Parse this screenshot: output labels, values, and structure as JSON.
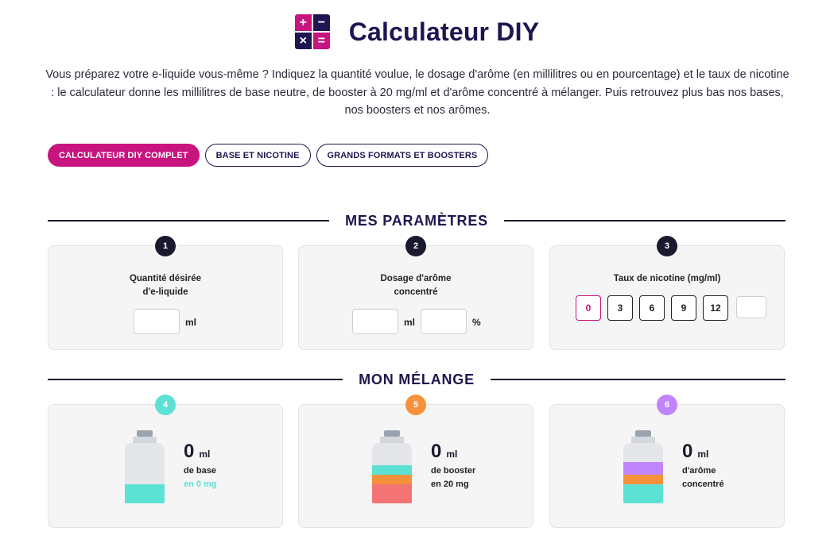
{
  "header": {
    "title": "Calculateur DIY",
    "logo_symbols": [
      "+",
      "−",
      "×",
      "="
    ]
  },
  "intro": "Vous préparez votre e-liquide vous-même ? Indiquez la quantité voulue, le dosage d'arôme (en millilitres ou en pourcentage) et le taux de nicotine : le calculateur donne les millilitres de base neutre, de booster à 20 mg/ml et d'arôme concentré à mélanger. Puis retrouvez plus bas nos bases, nos boosters et nos arômes.",
  "tabs": [
    {
      "label": "CALCULATEUR DIY COMPLET",
      "active": true
    },
    {
      "label": "BASE ET NICOTINE",
      "active": false
    },
    {
      "label": "GRANDS FORMATS ET BOOSTERS",
      "active": false
    }
  ],
  "sections": {
    "params_title": "MES PARAMÈTRES",
    "mix_title": "MON MÉLANGE"
  },
  "params": {
    "quantity": {
      "step": "1",
      "label_line1": "Quantité désirée",
      "label_line2": "d'e-liquide",
      "value": "",
      "unit": "ml"
    },
    "aroma": {
      "step": "2",
      "label_line1": "Dosage d'arôme",
      "label_line2": "concentré",
      "ml_value": "",
      "ml_unit": "ml",
      "pct_value": "",
      "pct_unit": "%"
    },
    "nicotine": {
      "step": "3",
      "label": "Taux de nicotine (mg/ml)",
      "options": [
        "0",
        "3",
        "6",
        "9",
        "12"
      ],
      "selected": "0",
      "custom_value": ""
    }
  },
  "mix": {
    "base": {
      "step": "4",
      "badge_color": "#5ce1d4",
      "amount": "0",
      "unit": "ml",
      "line1": "de base",
      "line2": "en 0 mg",
      "line2_color": "#5ce1d4",
      "levels": [
        {
          "color": "#5ce1d4",
          "fraction": 0.31
        }
      ]
    },
    "booster": {
      "step": "5",
      "badge_color": "#f4913a",
      "amount": "0",
      "unit": "ml",
      "line1": "de booster",
      "line2": "en 20 mg",
      "line2_color": "#222222",
      "levels": [
        {
          "color": "#f47474",
          "fraction": 0.31
        },
        {
          "color": "#f4913a",
          "fraction": 0.16
        },
        {
          "color": "#5ce1d4",
          "fraction": 0.16
        }
      ]
    },
    "arome": {
      "step": "6",
      "badge_color": "#c084fc",
      "amount": "0",
      "unit": "ml",
      "line1": "d'arôme",
      "line2": "concentré",
      "line2_color": "#222222",
      "levels": [
        {
          "color": "#5ce1d4",
          "fraction": 0.31
        },
        {
          "color": "#f4913a",
          "fraction": 0.16
        },
        {
          "color": "#c084fc",
          "fraction": 0.22
        }
      ]
    }
  }
}
